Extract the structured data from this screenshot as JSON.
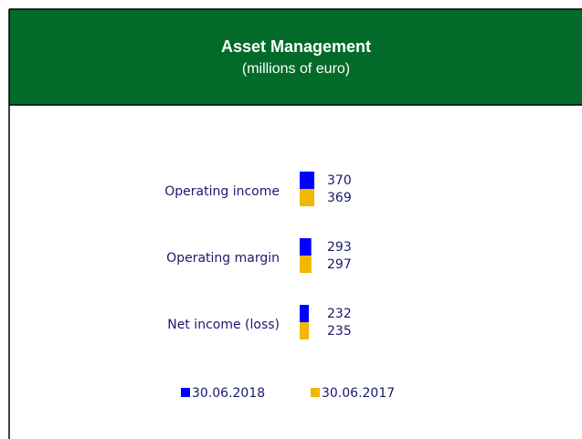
{
  "chart_data": {
    "type": "bar",
    "orientation": "horizontal",
    "title": "Asset Management",
    "subtitle": "(millions of euro)",
    "categories": [
      "Operating income",
      "Operating margin",
      "Net income (loss)"
    ],
    "series": [
      {
        "name": "30.06.2018",
        "color": "#0000ff",
        "values": [
          370,
          293,
          232
        ]
      },
      {
        "name": "30.06.2017",
        "color": "#f0b800",
        "values": [
          369,
          297,
          235
        ]
      }
    ],
    "legend": "bottom"
  }
}
